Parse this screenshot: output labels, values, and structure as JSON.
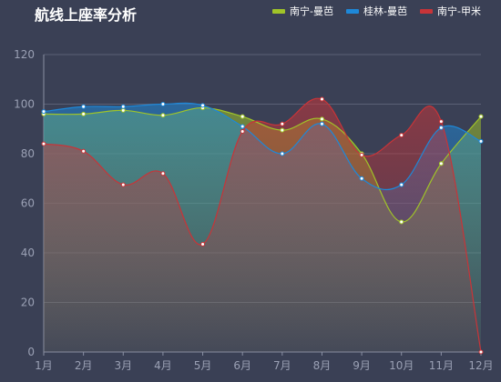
{
  "chart_data": {
    "type": "line",
    "title": "航线上座率分析",
    "categories": [
      "1月",
      "2月",
      "3月",
      "4月",
      "5月",
      "6月",
      "7月",
      "8月",
      "9月",
      "10月",
      "11月",
      "12月"
    ],
    "ylim": [
      0,
      120
    ],
    "yticks": [
      0,
      20,
      40,
      60,
      80,
      100,
      120
    ],
    "grid": true,
    "legend_position": "top-right",
    "series": [
      {
        "name": "南宁-曼芭",
        "color": "#a0c428",
        "values": [
          96,
          96,
          97.5,
          95.5,
          98.5,
          95,
          89.5,
          94,
          80,
          52.5,
          76,
          95
        ]
      },
      {
        "name": "桂林-曼芭",
        "color": "#1e88d8",
        "values": [
          97,
          99,
          99,
          100,
          99.5,
          91,
          80,
          92,
          70,
          67.5,
          90.5,
          85
        ]
      },
      {
        "name": "南宁-甲米",
        "color": "#c83438",
        "values": [
          84,
          81,
          67.5,
          72,
          43.5,
          89,
          92,
          102,
          79.5,
          87.5,
          93,
          0
        ]
      }
    ]
  }
}
